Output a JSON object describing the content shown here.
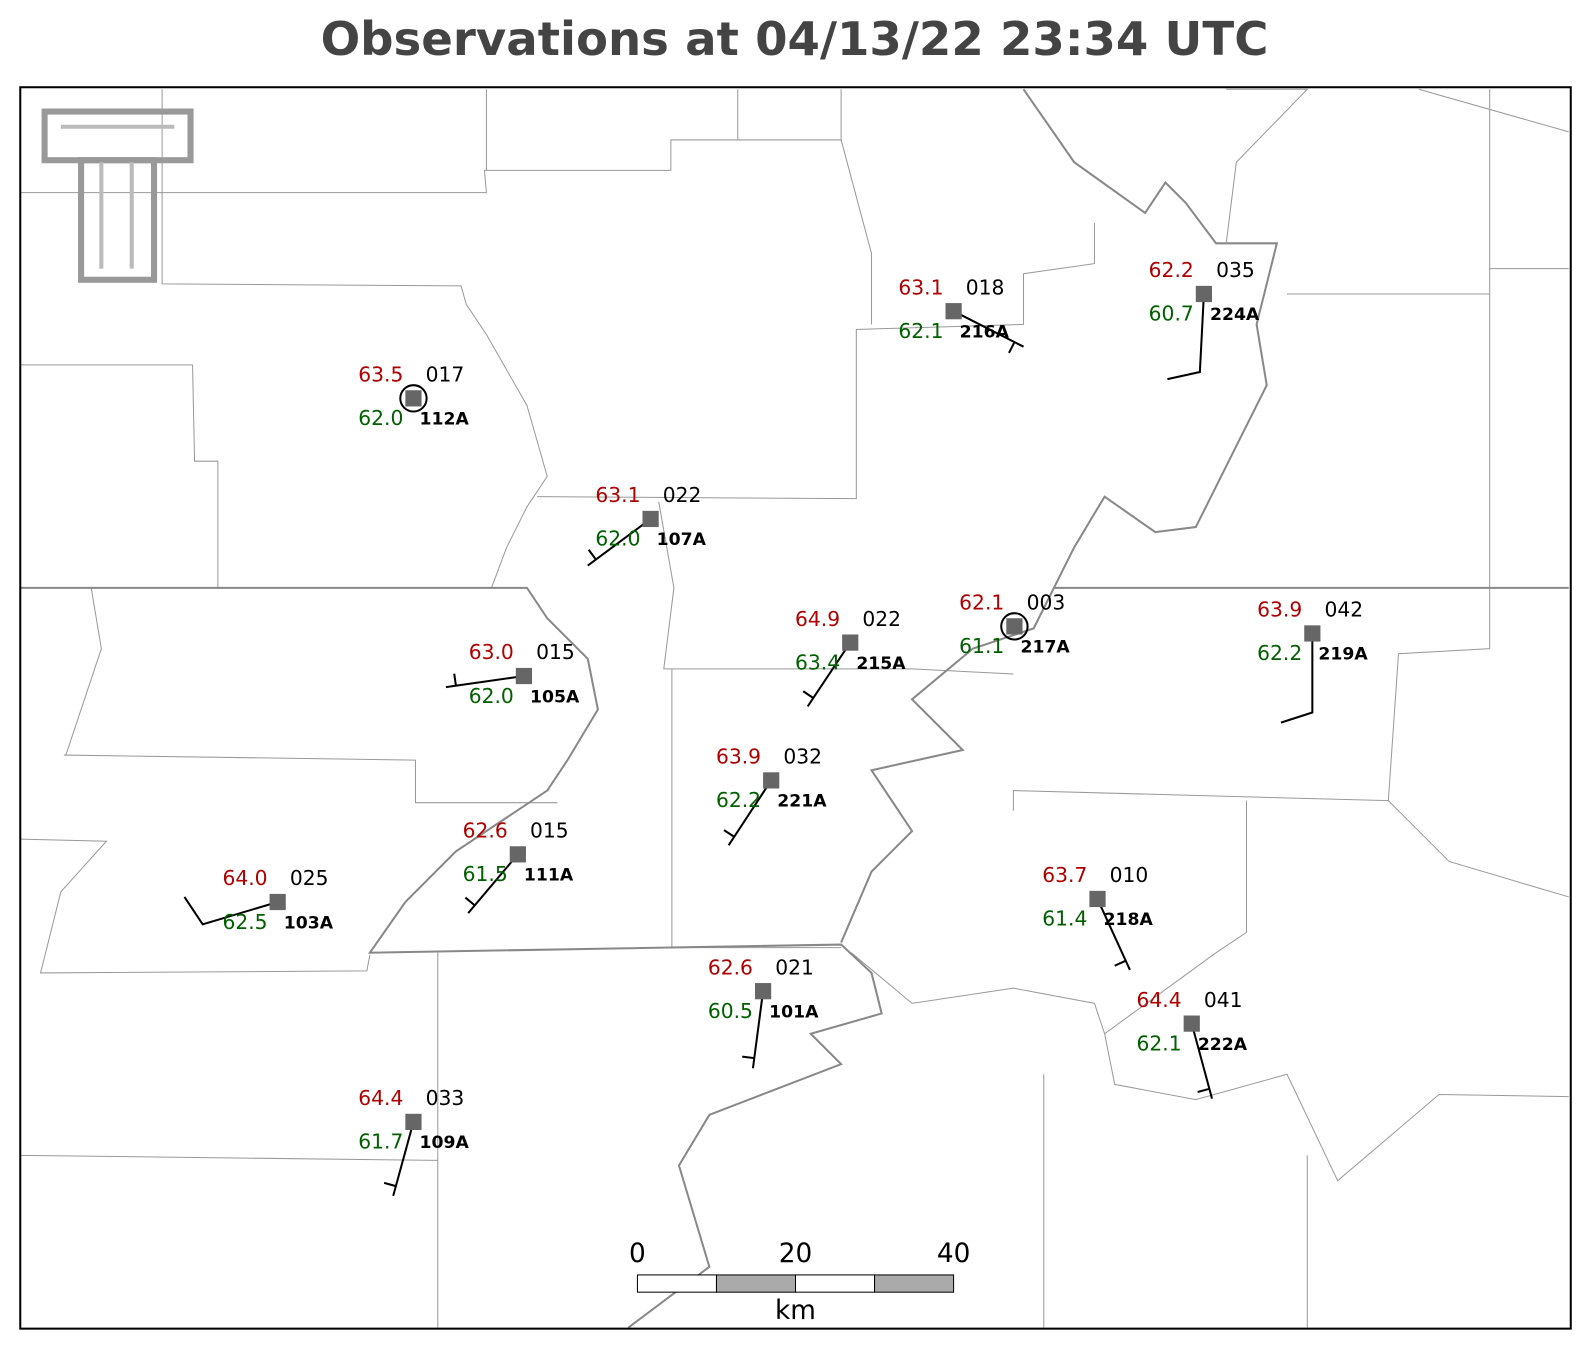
{
  "title": "Observations at 04/13/22 23:34 UTC",
  "stations": [
    {
      "temperature": "63.5",
      "pressure": "017",
      "dewpoint": "62.0",
      "id": "112A"
    },
    {
      "temperature": "63.1",
      "pressure": "022",
      "dewpoint": "62.0",
      "id": "107A"
    },
    {
      "temperature": "63.1",
      "pressure": "018",
      "dewpoint": "62.1",
      "id": "216A"
    },
    {
      "temperature": "62.2",
      "pressure": "035",
      "dewpoint": "60.7",
      "id": "224A"
    },
    {
      "temperature": "63.0",
      "pressure": "015",
      "dewpoint": "62.0",
      "id": "105A"
    },
    {
      "temperature": "64.9",
      "pressure": "022",
      "dewpoint": "63.4",
      "id": "215A"
    },
    {
      "temperature": "62.1",
      "pressure": "003",
      "dewpoint": "61.1",
      "id": "217A"
    },
    {
      "temperature": "63.9",
      "pressure": "042",
      "dewpoint": "62.2",
      "id": "219A"
    },
    {
      "temperature": "63.9",
      "pressure": "032",
      "dewpoint": "62.2",
      "id": "221A"
    },
    {
      "temperature": "62.6",
      "pressure": "015",
      "dewpoint": "61.5",
      "id": "111A"
    },
    {
      "temperature": "64.0",
      "pressure": "025",
      "dewpoint": "62.5",
      "id": "103A"
    },
    {
      "temperature": "63.7",
      "pressure": "010",
      "dewpoint": "61.4",
      "id": "218A"
    },
    {
      "temperature": "62.6",
      "pressure": "021",
      "dewpoint": "60.5",
      "id": "101A"
    },
    {
      "temperature": "64.4",
      "pressure": "041",
      "dewpoint": "62.1",
      "id": "222A"
    },
    {
      "temperature": "64.4",
      "pressure": "033",
      "dewpoint": "61.7",
      "id": "109A"
    }
  ],
  "scale_bar": {
    "ticks": [
      "0",
      "20",
      "40"
    ],
    "unit": "km"
  }
}
